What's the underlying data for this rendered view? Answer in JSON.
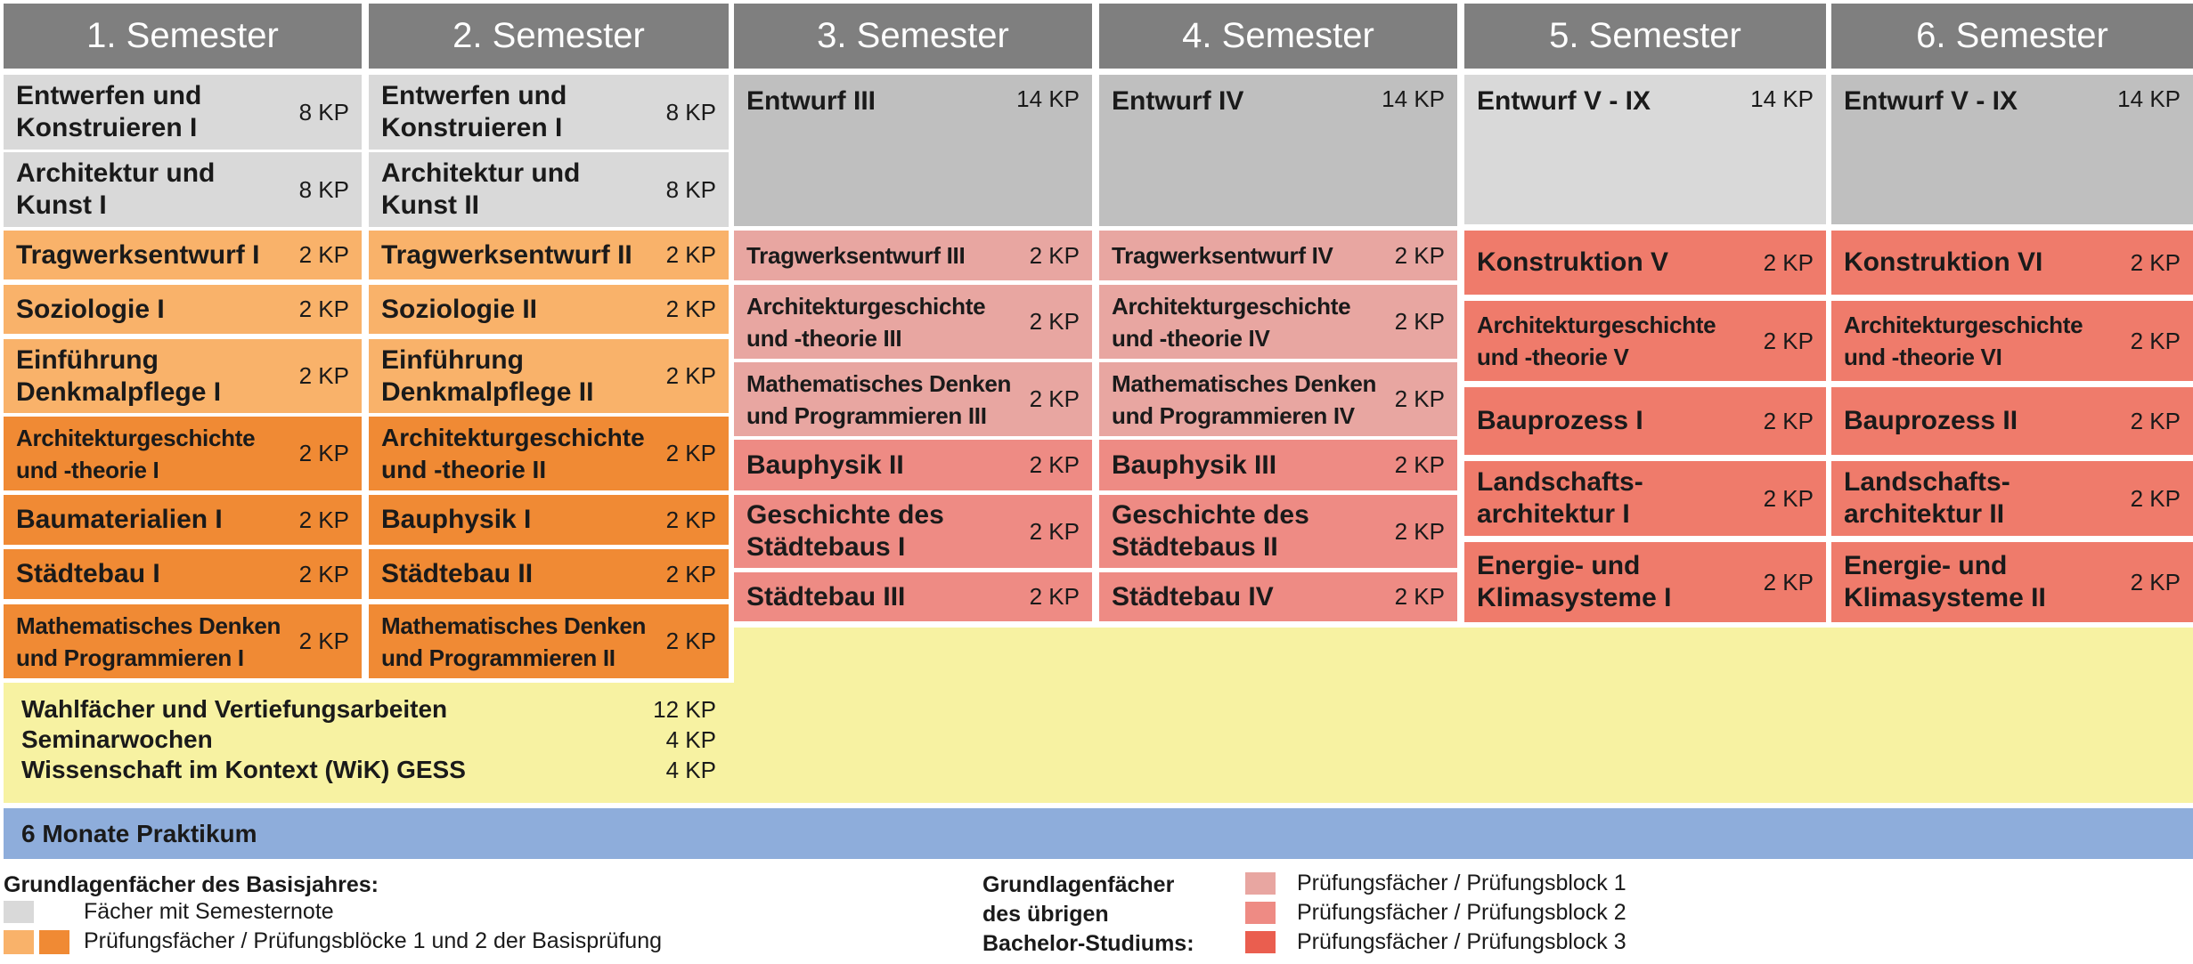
{
  "semesters": [
    "1. Semester",
    "2. Semester",
    "3. Semester",
    "4. Semester",
    "5. Semester",
    "6. Semester"
  ],
  "colors": {
    "header": "#7f7f7f",
    "grey_semesternote": "#d9d9d9",
    "grey_entwurf": "#bfbfbf",
    "orange_light_block1": "#f9b26a",
    "orange_dark_block2": "#f08a34",
    "pruefungsblock_1": "#e8a6a1",
    "pruefungsblock_2": "#ee8b84",
    "pruefungsblock_3": "#ef7b6b",
    "wahlfaecher_yellow": "#f7f2a2",
    "praktikum_blue": "#8eaddb"
  },
  "sem1": [
    {
      "name": "Entwerfen und Konstruieren I",
      "kp": "8 KP"
    },
    {
      "name": "Architektur und Kunst I",
      "kp": "8 KP"
    },
    {
      "name": "Tragwerksentwurf I",
      "kp": "2 KP"
    },
    {
      "name": "Soziologie I",
      "kp": "2 KP"
    },
    {
      "name": "Einführung Denkmalpflege I",
      "kp": "2 KP"
    },
    {
      "name": "Architekturgeschichte und -theorie I",
      "kp": "2 KP"
    },
    {
      "name": "Baumaterialien I",
      "kp": "2 KP"
    },
    {
      "name": "Städtebau I",
      "kp": "2 KP"
    },
    {
      "name": "Mathematisches Denken und Programmieren I",
      "kp": "2 KP"
    }
  ],
  "sem2": [
    {
      "name": "Entwerfen und Konstruieren I",
      "kp": "8 KP"
    },
    {
      "name": "Architektur und Kunst II",
      "kp": "8 KP"
    },
    {
      "name": "Tragwerksentwurf II",
      "kp": "2 KP"
    },
    {
      "name": "Soziologie II",
      "kp": "2 KP"
    },
    {
      "name": "Einführung Denkmalpflege II",
      "kp": "2 KP"
    },
    {
      "name": "Architekturgeschichte und -theorie II",
      "kp": "2 KP"
    },
    {
      "name": "Bauphysik I",
      "kp": "2 KP"
    },
    {
      "name": "Städtebau II",
      "kp": "2 KP"
    },
    {
      "name": "Mathematisches Denken und Programmieren II",
      "kp": "2 KP"
    }
  ],
  "sem3": [
    {
      "name": "Entwurf III",
      "kp": "14 KP"
    },
    {
      "name": "Tragwerksentwurf III",
      "kp": "2 KP"
    },
    {
      "name": "Architekturgeschichte und -theorie III",
      "kp": "2 KP"
    },
    {
      "name": "Mathematisches Denken und Programmieren III",
      "kp": "2 KP"
    },
    {
      "name": "Bauphysik II",
      "kp": "2 KP"
    },
    {
      "name": "Geschichte des Städtebaus I",
      "kp": "2 KP"
    },
    {
      "name": "Städtebau III",
      "kp": "2 KP"
    }
  ],
  "sem4": [
    {
      "name": "Entwurf IV",
      "kp": "14 KP"
    },
    {
      "name": "Tragwerksentwurf IV",
      "kp": "2 KP"
    },
    {
      "name": "Architekturgeschichte und -theorie IV",
      "kp": "2 KP"
    },
    {
      "name": "Mathematisches Denken und Programmieren IV",
      "kp": "2 KP"
    },
    {
      "name": "Bauphysik III",
      "kp": "2 KP"
    },
    {
      "name": "Geschichte des Städtebaus II",
      "kp": "2 KP"
    },
    {
      "name": "Städtebau IV",
      "kp": "2 KP"
    }
  ],
  "sem5": [
    {
      "name": "Entwurf V - IX",
      "kp": "14 KP"
    },
    {
      "name": "Konstruktion V",
      "kp": "2 KP"
    },
    {
      "name": "Architekturgeschichte und -theorie V",
      "kp": "2 KP"
    },
    {
      "name": "Bauprozess I",
      "kp": "2 KP"
    },
    {
      "name": "Landschafts-architektur I",
      "kp": "2 KP"
    },
    {
      "name": "Energie- und Klimasysteme I",
      "kp": "2 KP"
    }
  ],
  "sem6": [
    {
      "name": "Entwurf V - IX",
      "kp": "14 KP"
    },
    {
      "name": "Konstruktion VI",
      "kp": "2 KP"
    },
    {
      "name": "Architekturgeschichte und -theorie VI",
      "kp": "2 KP"
    },
    {
      "name": "Bauprozess II",
      "kp": "2 KP"
    },
    {
      "name": "Landschafts-architektur II",
      "kp": "2 KP"
    },
    {
      "name": "Energie- und Klimasysteme II",
      "kp": "2 KP"
    }
  ],
  "wahl": [
    {
      "name": "Wahlfächer und Vertiefungsarbeiten",
      "kp": "12 KP"
    },
    {
      "name": "Seminarwochen",
      "kp": "4 KP"
    },
    {
      "name": "Wissenschaft im Kontext (WiK) GESS",
      "kp": "4 KP"
    }
  ],
  "praktikum": "6 Monate Praktikum",
  "legend_left": {
    "title": "Grundlagenfächer des Basisjahres:",
    "item1": "Fächer mit Semesternote",
    "item2": "Prüfungsfächer / Prüfungsblöcke 1 und 2 der Basisprüfung"
  },
  "legend_right": {
    "title_line1": "Grundlagenfächer",
    "title_line2": "des übrigen",
    "title_line3": "Bachelor-Studiums:",
    "item1": "Prüfungsfächer / Prüfungsblock 1",
    "item2": "Prüfungsfächer / Prüfungsblock 2",
    "item3": "Prüfungsfächer / Prüfungsblock 3"
  }
}
